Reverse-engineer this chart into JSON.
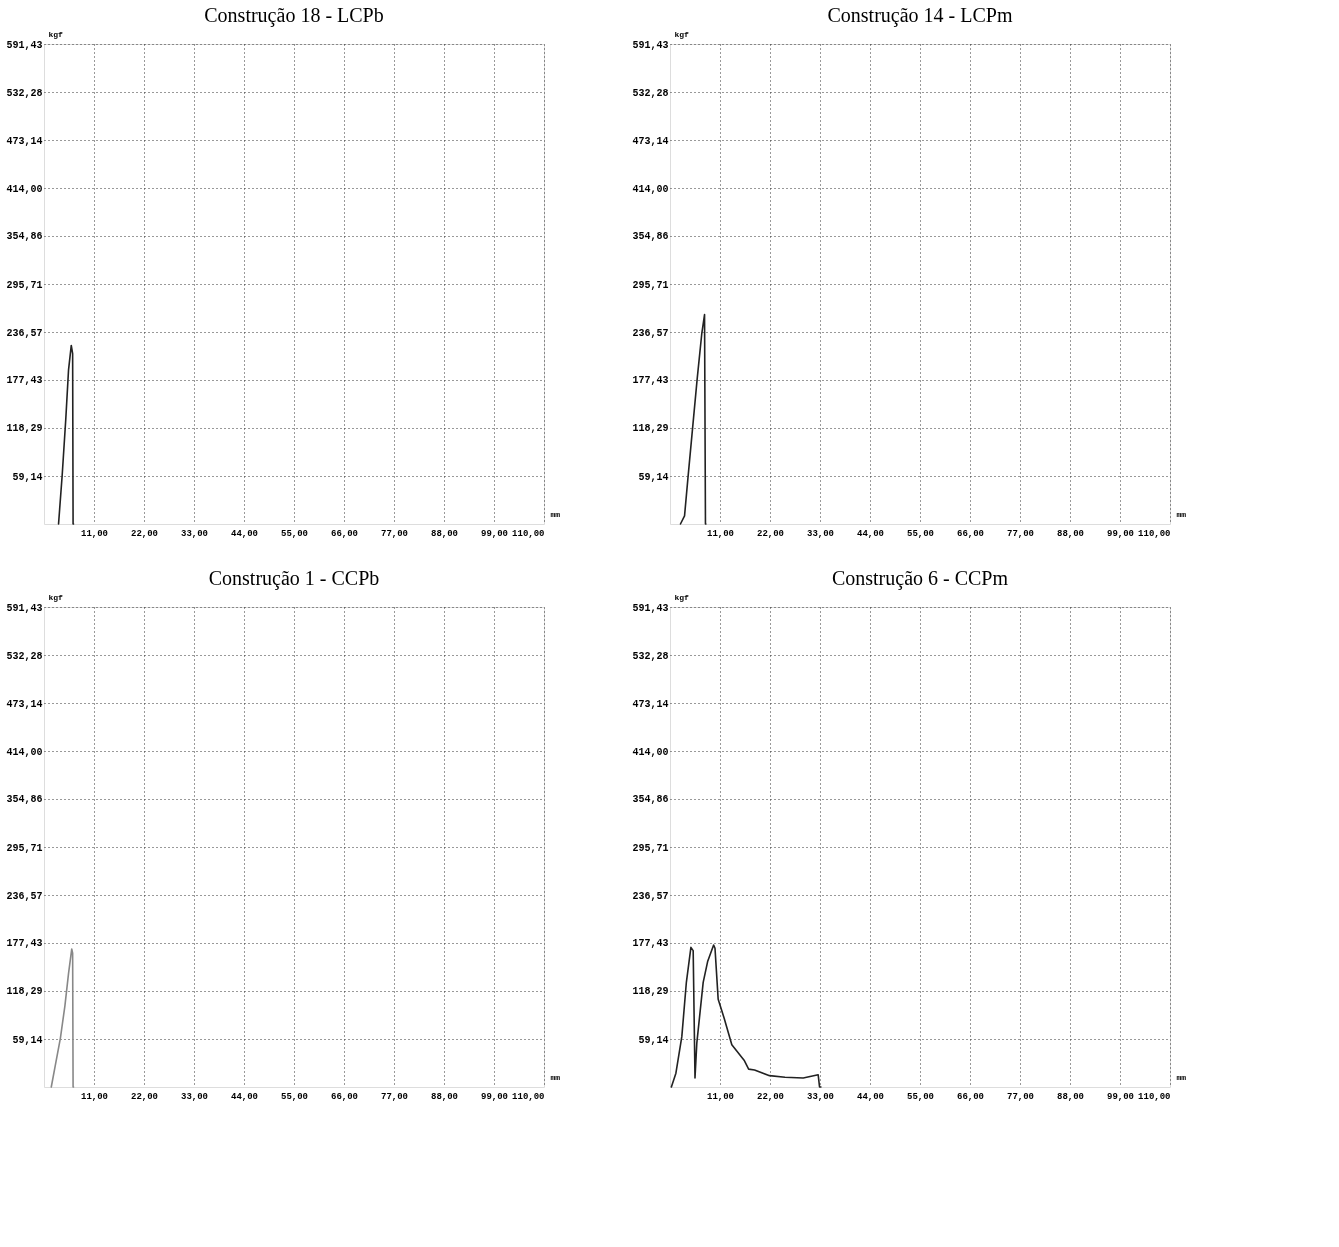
{
  "chart_data": [
    {
      "type": "line",
      "title": "Construção 18 - LCPb",
      "xlabel": "mm",
      "ylabel": "kgf",
      "xlim": [
        0,
        110
      ],
      "ylim": [
        0,
        591.43
      ],
      "grid": true,
      "marker": "none",
      "line_style": "solid",
      "xticks": [
        {
          "value": 11,
          "label": "11,00"
        },
        {
          "value": 22,
          "label": "22,00"
        },
        {
          "value": 33,
          "label": "33,00"
        },
        {
          "value": 44,
          "label": "44,00"
        },
        {
          "value": 55,
          "label": "55,00"
        },
        {
          "value": 66,
          "label": "66,00"
        },
        {
          "value": 77,
          "label": "77,00"
        },
        {
          "value": 88,
          "label": "88,00"
        },
        {
          "value": 99,
          "label": "99,00"
        },
        {
          "value": 110,
          "label": "110,00"
        }
      ],
      "yticks": [
        {
          "value": 59.14,
          "label": "59,14"
        },
        {
          "value": 118.29,
          "label": "118,29"
        },
        {
          "value": 177.43,
          "label": "177,43"
        },
        {
          "value": 236.57,
          "label": "236,57"
        },
        {
          "value": 295.71,
          "label": "295,71"
        },
        {
          "value": 354.86,
          "label": "354,86"
        },
        {
          "value": 414,
          "label": "414,00"
        },
        {
          "value": 473.14,
          "label": "473,14"
        },
        {
          "value": 532.28,
          "label": "532,28"
        },
        {
          "value": 591.43,
          "label": "591,43"
        }
      ],
      "series": [
        {
          "color": "#222222",
          "x": [
            3.2,
            4,
            4.8,
            5.4,
            6,
            6.3,
            6.4,
            6.5
          ],
          "values": [
            0,
            60,
            130,
            190,
            220,
            210,
            0,
            0
          ]
        }
      ]
    },
    {
      "type": "line",
      "title": "Construção 14 - LCPm",
      "xlabel": "mm",
      "ylabel": "kgf",
      "xlim": [
        0,
        110
      ],
      "ylim": [
        0,
        591.43
      ],
      "grid": true,
      "marker": "none",
      "line_style": "solid",
      "xticks": [
        {
          "value": 11,
          "label": "11,00"
        },
        {
          "value": 22,
          "label": "22,00"
        },
        {
          "value": 33,
          "label": "33,00"
        },
        {
          "value": 44,
          "label": "44,00"
        },
        {
          "value": 55,
          "label": "55,00"
        },
        {
          "value": 66,
          "label": "66,00"
        },
        {
          "value": 77,
          "label": "77,00"
        },
        {
          "value": 88,
          "label": "88,00"
        },
        {
          "value": 99,
          "label": "99,00"
        },
        {
          "value": 110,
          "label": "110,00"
        }
      ],
      "yticks": [
        {
          "value": 59.14,
          "label": "59,14"
        },
        {
          "value": 118.29,
          "label": "118,29"
        },
        {
          "value": 177.43,
          "label": "177,43"
        },
        {
          "value": 236.57,
          "label": "236,57"
        },
        {
          "value": 295.71,
          "label": "295,71"
        },
        {
          "value": 354.86,
          "label": "354,86"
        },
        {
          "value": 414,
          "label": "414,00"
        },
        {
          "value": 473.14,
          "label": "473,14"
        },
        {
          "value": 532.28,
          "label": "532,28"
        },
        {
          "value": 591.43,
          "label": "591,43"
        }
      ],
      "series": [
        {
          "color": "#222222",
          "x": [
            2.3,
            3.2,
            4,
            5,
            6,
            7,
            7.6,
            7.8,
            7.9
          ],
          "values": [
            0,
            10,
            60,
            120,
            180,
            235,
            258,
            0,
            0
          ]
        }
      ]
    },
    {
      "type": "line",
      "title": "Construção 1 - CCPb",
      "xlabel": "mm",
      "ylabel": "kgf",
      "xlim": [
        0,
        110
      ],
      "ylim": [
        0,
        591.43
      ],
      "grid": true,
      "marker": "none",
      "line_style": "solid",
      "xticks": [
        {
          "value": 11,
          "label": "11,00"
        },
        {
          "value": 22,
          "label": "22,00"
        },
        {
          "value": 33,
          "label": "33,00"
        },
        {
          "value": 44,
          "label": "44,00"
        },
        {
          "value": 55,
          "label": "55,00"
        },
        {
          "value": 66,
          "label": "66,00"
        },
        {
          "value": 77,
          "label": "77,00"
        },
        {
          "value": 88,
          "label": "88,00"
        },
        {
          "value": 99,
          "label": "99,00"
        },
        {
          "value": 110,
          "label": "110,00"
        }
      ],
      "yticks": [
        {
          "value": 59.14,
          "label": "59,14"
        },
        {
          "value": 118.29,
          "label": "118,29"
        },
        {
          "value": 177.43,
          "label": "177,43"
        },
        {
          "value": 236.57,
          "label": "236,57"
        },
        {
          "value": 295.71,
          "label": "295,71"
        },
        {
          "value": 354.86,
          "label": "354,86"
        },
        {
          "value": 414,
          "label": "414,00"
        },
        {
          "value": 473.14,
          "label": "473,14"
        },
        {
          "value": 532.28,
          "label": "532,28"
        },
        {
          "value": 591.43,
          "label": "591,43"
        }
      ],
      "series": [
        {
          "color": "#888888",
          "x": [
            1.6,
            2.6,
            3.6,
            4.6,
            5.4,
            6.1,
            6.3,
            6.4,
            6.5
          ],
          "values": [
            0,
            30,
            60,
            100,
            140,
            170,
            165,
            0,
            0
          ]
        }
      ]
    },
    {
      "type": "line",
      "title": "Construção 6 - CCPm",
      "xlabel": "mm",
      "ylabel": "kgf",
      "xlim": [
        0,
        110
      ],
      "ylim": [
        0,
        591.43
      ],
      "grid": true,
      "marker": "none",
      "line_style": "solid",
      "xticks": [
        {
          "value": 11,
          "label": "11,00"
        },
        {
          "value": 22,
          "label": "22,00"
        },
        {
          "value": 33,
          "label": "33,00"
        },
        {
          "value": 44,
          "label": "44,00"
        },
        {
          "value": 55,
          "label": "55,00"
        },
        {
          "value": 66,
          "label": "66,00"
        },
        {
          "value": 77,
          "label": "77,00"
        },
        {
          "value": 88,
          "label": "88,00"
        },
        {
          "value": 99,
          "label": "99,00"
        },
        {
          "value": 110,
          "label": "110,00"
        }
      ],
      "yticks": [
        {
          "value": 59.14,
          "label": "59,14"
        },
        {
          "value": 118.29,
          "label": "118,29"
        },
        {
          "value": 177.43,
          "label": "177,43"
        },
        {
          "value": 236.57,
          "label": "236,57"
        },
        {
          "value": 295.71,
          "label": "295,71"
        },
        {
          "value": 354.86,
          "label": "354,86"
        },
        {
          "value": 414,
          "label": "414,00"
        },
        {
          "value": 473.14,
          "label": "473,14"
        },
        {
          "value": 532.28,
          "label": "532,28"
        },
        {
          "value": 591.43,
          "label": "591,43"
        }
      ],
      "series": [
        {
          "color": "#222222",
          "x": [
            0.3,
            1.3,
            2.6,
            3.6,
            4.6,
            5.1,
            5.5,
            5.9,
            7.3,
            8.3,
            9.6,
            9.9,
            10.6,
            11.9,
            13.6,
            16.3,
            17.3,
            18.6,
            21.9,
            25.3,
            29.3,
            32.6,
            32.9,
            33.2
          ],
          "values": [
            0,
            17,
            62,
            129,
            172,
            168,
            11,
            54,
            129,
            155,
            175,
            171,
            108,
            85,
            52,
            33,
            22,
            21,
            14,
            12,
            11,
            15,
            0,
            0
          ]
        }
      ]
    }
  ]
}
